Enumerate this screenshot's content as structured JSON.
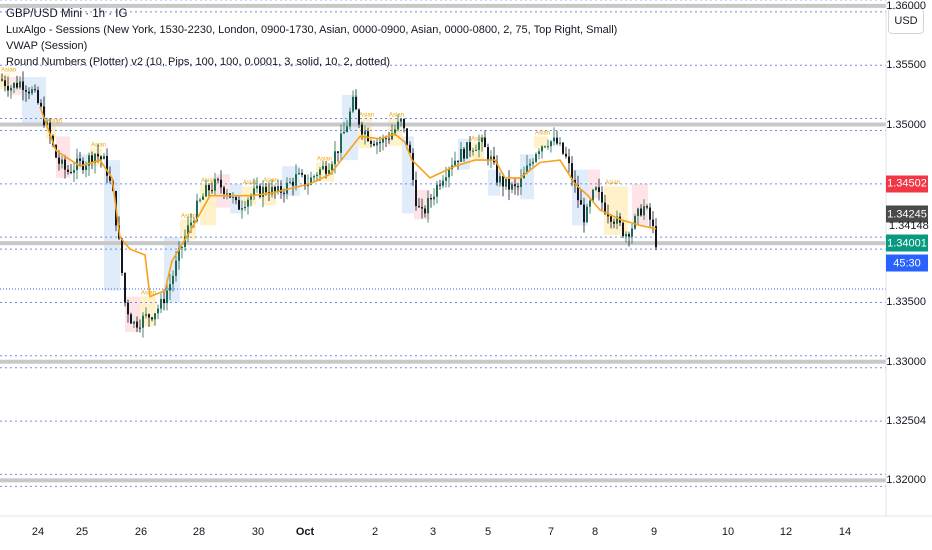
{
  "header": {
    "symbol_line": "GBP/USD Mini · 1h · IG",
    "indicators": [
      "LuxAlgo - Sessions (New York, 1530-2230, London, 0900-1730, Asian, 0000-0900, Asian, 0000-0800, 2, 75, Top Right, Small)",
      "VWAP (Session)",
      "Round Numbers (Plotter) v2 (10, Pips, 100, 100, 0.0001, 3, solid, 10, 2, dotted)"
    ],
    "currency_button": "USD"
  },
  "price_labels": {
    "red": {
      "text": "1.34502",
      "color": "#f23645"
    },
    "dark": {
      "text": "1.34245",
      "color": "#4a4a4a"
    },
    "plain": {
      "text": "1.34148"
    },
    "green": {
      "text": "1.34001",
      "color": "#089981"
    },
    "timer": {
      "text": "45:30",
      "color": "#2962ff"
    }
  },
  "chart_data": {
    "type": "candlestick",
    "title": "GBP/USD Mini · 1h · IG",
    "ylim": [
      1.317,
      1.3605
    ],
    "y_ticks": [
      "1.36000",
      "1.35500",
      "1.35000",
      "1.34502",
      "1.34245",
      "1.34148",
      "1.34001",
      "1.33500",
      "1.33000",
      "1.32504",
      "1.32000"
    ],
    "x_ticks": [
      "24",
      "25",
      "26",
      "28",
      "30",
      "Oct",
      "2",
      "3",
      "5",
      "7",
      "8",
      "9",
      "10",
      "12",
      "14"
    ],
    "x_ticks_bold": [
      "Oct"
    ],
    "round_levels_solid": [
      1.36,
      1.35,
      1.34,
      1.33,
      1.32
    ],
    "round_levels_dotted": [
      1.355,
      1.345,
      1.335,
      1.325
    ],
    "session_label": "Asian",
    "price_path": [
      [
        0,
        1.3538
      ],
      [
        10,
        1.3532
      ],
      [
        20,
        1.3536
      ],
      [
        32,
        1.3527
      ],
      [
        40,
        1.3512
      ],
      [
        48,
        1.3492
      ],
      [
        56,
        1.347
      ],
      [
        66,
        1.346
      ],
      [
        74,
        1.3465
      ],
      [
        84,
        1.3468
      ],
      [
        94,
        1.3476
      ],
      [
        104,
        1.3468
      ],
      [
        112,
        1.344
      ],
      [
        118,
        1.34
      ],
      [
        124,
        1.335
      ],
      [
        132,
        1.3332
      ],
      [
        140,
        1.3335
      ],
      [
        150,
        1.334
      ],
      [
        160,
        1.3348
      ],
      [
        170,
        1.3368
      ],
      [
        178,
        1.339
      ],
      [
        186,
        1.341
      ],
      [
        196,
        1.343
      ],
      [
        206,
        1.3445
      ],
      [
        216,
        1.345
      ],
      [
        226,
        1.3445
      ],
      [
        236,
        1.343
      ],
      [
        246,
        1.3438
      ],
      [
        256,
        1.3443
      ],
      [
        266,
        1.3446
      ],
      [
        276,
        1.3442
      ],
      [
        286,
        1.3448
      ],
      [
        296,
        1.3456
      ],
      [
        306,
        1.345
      ],
      [
        316,
        1.346
      ],
      [
        326,
        1.3465
      ],
      [
        336,
        1.3478
      ],
      [
        344,
        1.3495
      ],
      [
        352,
        1.3518
      ],
      [
        360,
        1.3498
      ],
      [
        370,
        1.3488
      ],
      [
        380,
        1.3485
      ],
      [
        390,
        1.3492
      ],
      [
        400,
        1.3502
      ],
      [
        408,
        1.348
      ],
      [
        414,
        1.344
      ],
      [
        420,
        1.3422
      ],
      [
        430,
        1.3438
      ],
      [
        440,
        1.3455
      ],
      [
        450,
        1.3468
      ],
      [
        460,
        1.3475
      ],
      [
        470,
        1.3482
      ],
      [
        480,
        1.3485
      ],
      [
        490,
        1.347
      ],
      [
        496,
        1.3455
      ],
      [
        506,
        1.3448
      ],
      [
        516,
        1.3445
      ],
      [
        526,
        1.3462
      ],
      [
        536,
        1.348
      ],
      [
        546,
        1.3487
      ],
      [
        556,
        1.3484
      ],
      [
        566,
        1.347
      ],
      [
        576,
        1.344
      ],
      [
        584,
        1.342
      ],
      [
        594,
        1.3445
      ],
      [
        604,
        1.343
      ],
      [
        614,
        1.342
      ],
      [
        624,
        1.3408
      ],
      [
        632,
        1.3415
      ],
      [
        642,
        1.3432
      ],
      [
        650,
        1.3418
      ],
      [
        656,
        1.3398
      ]
    ],
    "vwap_path": [
      [
        40,
        1.3515
      ],
      [
        56,
        1.3478
      ],
      [
        80,
        1.3465
      ],
      [
        100,
        1.347
      ],
      [
        112,
        1.3455
      ],
      [
        120,
        1.3405
      ],
      [
        130,
        1.3395
      ],
      [
        145,
        1.339
      ],
      [
        150,
        1.3355
      ],
      [
        165,
        1.336
      ],
      [
        172,
        1.3385
      ],
      [
        190,
        1.341
      ],
      [
        210,
        1.344
      ],
      [
        230,
        1.344
      ],
      [
        250,
        1.344
      ],
      [
        270,
        1.3442
      ],
      [
        290,
        1.3446
      ],
      [
        310,
        1.345
      ],
      [
        330,
        1.3458
      ],
      [
        345,
        1.3474
      ],
      [
        360,
        1.349
      ],
      [
        380,
        1.3488
      ],
      [
        395,
        1.3492
      ],
      [
        405,
        1.3485
      ],
      [
        412,
        1.347
      ],
      [
        430,
        1.3455
      ],
      [
        455,
        1.3465
      ],
      [
        475,
        1.347
      ],
      [
        495,
        1.347
      ],
      [
        505,
        1.3455
      ],
      [
        520,
        1.3455
      ],
      [
        540,
        1.3468
      ],
      [
        560,
        1.347
      ],
      [
        575,
        1.345
      ],
      [
        588,
        1.344
      ],
      [
        600,
        1.3428
      ],
      [
        620,
        1.342
      ],
      [
        640,
        1.3415
      ],
      [
        656,
        1.3412
      ]
    ],
    "session_boxes": [
      {
        "session": "Asian",
        "x0": 0,
        "x1": 10,
        "low": 1.353,
        "high": 1.3543
      },
      {
        "session": "London",
        "x0": 10,
        "x1": 22,
        "low": 1.3525,
        "high": 1.354
      },
      {
        "session": "New York",
        "x0": 22,
        "x1": 46,
        "low": 1.35,
        "high": 1.354
      },
      {
        "session": "Asian",
        "x0": 46,
        "x1": 56,
        "low": 1.3488,
        "high": 1.35
      },
      {
        "session": "London",
        "x0": 56,
        "x1": 70,
        "low": 1.3455,
        "high": 1.349
      },
      {
        "session": "New York",
        "x0": 76,
        "x1": 90,
        "low": 1.3462,
        "high": 1.3475
      },
      {
        "session": "Asian",
        "x0": 90,
        "x1": 102,
        "low": 1.3465,
        "high": 1.348
      },
      {
        "session": "New York",
        "x0": 104,
        "x1": 120,
        "low": 1.336,
        "high": 1.347
      },
      {
        "session": "London",
        "x0": 125,
        "x1": 140,
        "low": 1.3325,
        "high": 1.3355
      },
      {
        "session": "Asian",
        "x0": 140,
        "x1": 156,
        "low": 1.333,
        "high": 1.3355
      },
      {
        "session": "New York",
        "x0": 164,
        "x1": 180,
        "low": 1.335,
        "high": 1.3405
      },
      {
        "session": "Asian",
        "x0": 180,
        "x1": 196,
        "low": 1.3403,
        "high": 1.342
      },
      {
        "session": "Asian",
        "x0": 200,
        "x1": 216,
        "low": 1.3415,
        "high": 1.345
      },
      {
        "session": "London",
        "x0": 216,
        "x1": 230,
        "low": 1.343,
        "high": 1.3458
      },
      {
        "session": "New York",
        "x0": 230,
        "x1": 242,
        "low": 1.3425,
        "high": 1.345
      },
      {
        "session": "Asian",
        "x0": 242,
        "x1": 256,
        "low": 1.3432,
        "high": 1.3448
      },
      {
        "session": "Asian",
        "x0": 262,
        "x1": 276,
        "low": 1.3432,
        "high": 1.345
      },
      {
        "session": "New York",
        "x0": 282,
        "x1": 300,
        "low": 1.344,
        "high": 1.3465
      },
      {
        "session": "Asian",
        "x0": 316,
        "x1": 334,
        "low": 1.3452,
        "high": 1.3468
      },
      {
        "session": "New York",
        "x0": 342,
        "x1": 358,
        "low": 1.347,
        "high": 1.3525
      },
      {
        "session": "Asian",
        "x0": 358,
        "x1": 372,
        "low": 1.348,
        "high": 1.3505
      },
      {
        "session": "Asian",
        "x0": 388,
        "x1": 402,
        "low": 1.3482,
        "high": 1.3505
      },
      {
        "session": "New York",
        "x0": 402,
        "x1": 414,
        "low": 1.3425,
        "high": 1.349
      },
      {
        "session": "London",
        "x0": 414,
        "x1": 430,
        "low": 1.342,
        "high": 1.3445
      },
      {
        "session": "New York",
        "x0": 458,
        "x1": 470,
        "low": 1.3462,
        "high": 1.3488
      },
      {
        "session": "Asian",
        "x0": 470,
        "x1": 484,
        "low": 1.347,
        "high": 1.3485
      },
      {
        "session": "New York",
        "x0": 488,
        "x1": 500,
        "low": 1.344,
        "high": 1.3462
      },
      {
        "session": "London",
        "x0": 510,
        "x1": 520,
        "low": 1.3445,
        "high": 1.3455
      },
      {
        "session": "New York",
        "x0": 520,
        "x1": 534,
        "low": 1.3437,
        "high": 1.3475
      },
      {
        "session": "Asian",
        "x0": 534,
        "x1": 548,
        "low": 1.348,
        "high": 1.349
      },
      {
        "session": "New York",
        "x0": 572,
        "x1": 588,
        "low": 1.3415,
        "high": 1.3462
      },
      {
        "session": "London",
        "x0": 588,
        "x1": 600,
        "low": 1.3438,
        "high": 1.3462
      },
      {
        "session": "Asian",
        "x0": 604,
        "x1": 628,
        "low": 1.3407,
        "high": 1.3448
      },
      {
        "session": "London",
        "x0": 632,
        "x1": 648,
        "low": 1.3415,
        "high": 1.345
      }
    ]
  }
}
